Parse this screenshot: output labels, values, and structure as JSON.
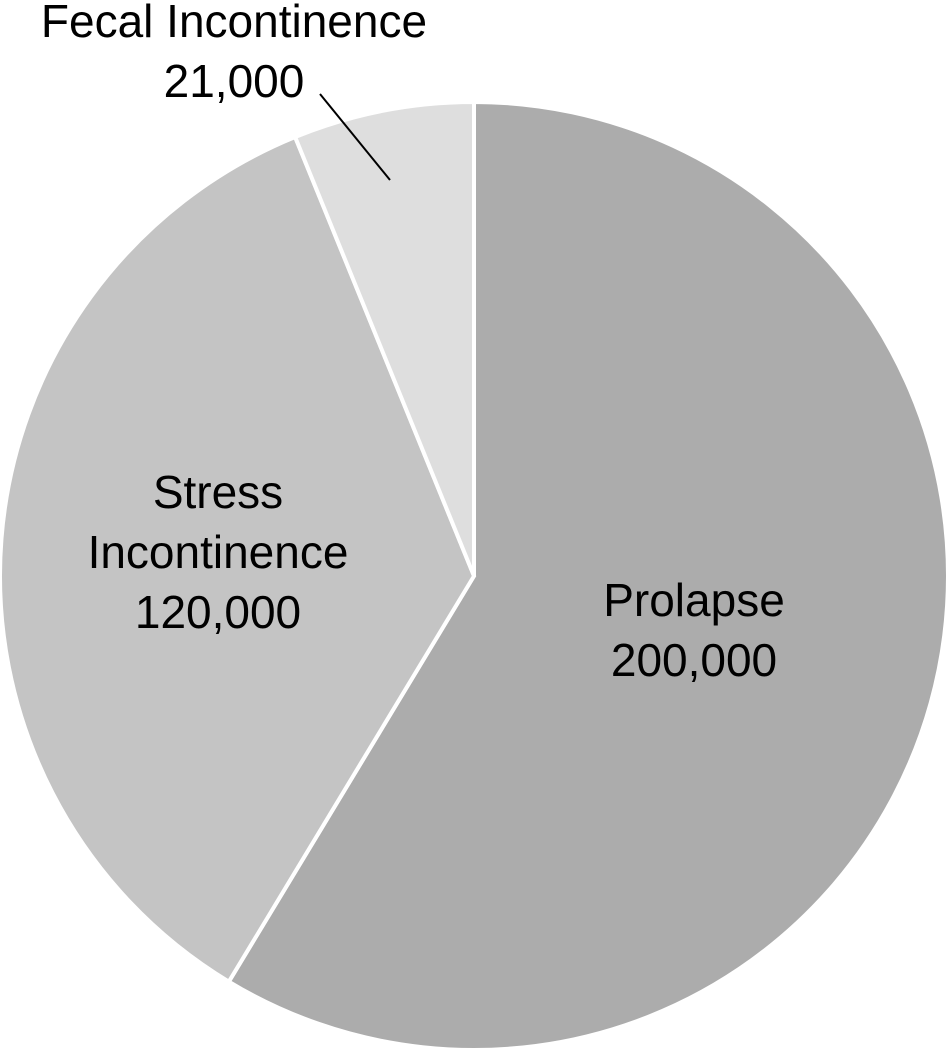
{
  "chart_data": {
    "type": "pie",
    "title": "",
    "start": "12 o'clock",
    "direction": "clockwise",
    "slices": [
      {
        "name": "Prolapse",
        "label_lines": [
          "Prolapse"
        ],
        "value": 200000,
        "value_label": "200,000",
        "color": "#acacac"
      },
      {
        "name": "Stress Incontinence",
        "label_lines": [
          "Stress",
          "Incontinence"
        ],
        "value": 120000,
        "value_label": "120,000",
        "color": "#c4c4c4"
      },
      {
        "name": "Fecal Incontinence",
        "label_lines": [
          "Fecal Incontinence"
        ],
        "value": 21000,
        "value_label": "21,000",
        "color": "#dedede"
      }
    ],
    "legend": "none"
  }
}
